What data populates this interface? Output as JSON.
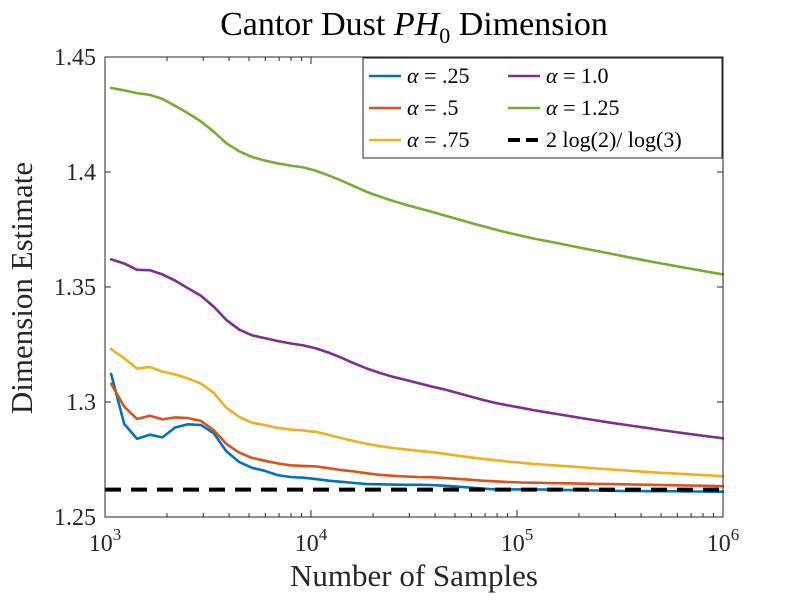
{
  "chart_data": {
    "type": "line",
    "title": "Cantor Dust PH0 Dimension",
    "title_parts": {
      "lead": "Cantor Dust ",
      "var": "PH",
      "sub": "0",
      "tail": " Dimension"
    },
    "xlabel": "Number of Samples",
    "ylabel": "Dimension Estimate",
    "xscale": "log",
    "xlim": [
      1000,
      1000000
    ],
    "ylim": [
      1.25,
      1.45
    ],
    "x_ticks": [
      {
        "value": 1000,
        "base": "10",
        "exp": "3"
      },
      {
        "value": 10000,
        "base": "10",
        "exp": "4"
      },
      {
        "value": 100000,
        "base": "10",
        "exp": "5"
      },
      {
        "value": 1000000,
        "base": "10",
        "exp": "6"
      }
    ],
    "y_ticks": [
      {
        "value": 1.25,
        "label": "1.25"
      },
      {
        "value": 1.3,
        "label": "1.3"
      },
      {
        "value": 1.35,
        "label": "1.35"
      },
      {
        "value": 1.4,
        "label": "1.4"
      },
      {
        "value": 1.45,
        "label": "1.45"
      }
    ],
    "legend_position": "top-right",
    "x": [
      1070,
      1240,
      1430,
      1650,
      1900,
      2190,
      2530,
      2920,
      3370,
      3880,
      4480,
      5170,
      5960,
      6880,
      7940,
      9160,
      10570,
      12190,
      14070,
      16230,
      18730,
      21610,
      24930,
      28770,
      33190,
      38300,
      44190,
      50990,
      58830,
      67880,
      78330,
      90370,
      104290,
      120320,
      138840,
      160200,
      184850,
      213290,
      246100,
      283970,
      327660,
      378080,
      436250,
      503370,
      580820,
      670180,
      773300,
      892270,
      1000000
    ],
    "series": [
      {
        "name": "α = .25",
        "legend": {
          "sym": "α",
          "rest": " = .25"
        },
        "color": "#0072BD",
        "style": "solid",
        "values": [
          1.3122,
          1.2905,
          1.284,
          1.2858,
          1.2846,
          1.2889,
          1.2903,
          1.29,
          1.2865,
          1.2786,
          1.2739,
          1.2714,
          1.2701,
          1.2682,
          1.2674,
          1.2671,
          1.2665,
          1.2658,
          1.2653,
          1.2648,
          1.2643,
          1.2642,
          1.2641,
          1.264,
          1.264,
          1.2639,
          1.2636,
          1.2632,
          1.2628,
          1.2624,
          1.262,
          1.262,
          1.262,
          1.262,
          1.2619,
          1.2618,
          1.2617,
          1.2616,
          1.2615,
          1.2614,
          1.2613,
          1.2613,
          1.2612,
          1.2612,
          1.2612,
          1.2611,
          1.2611,
          1.261,
          1.261
        ]
      },
      {
        "name": "α = .5",
        "legend": {
          "sym": "α",
          "rest": " = .5"
        },
        "color": "#D95319",
        "style": "solid",
        "values": [
          1.308,
          1.298,
          1.2926,
          1.294,
          1.2925,
          1.2933,
          1.293,
          1.2918,
          1.2878,
          1.2818,
          1.278,
          1.2757,
          1.2745,
          1.2733,
          1.2725,
          1.2722,
          1.272,
          1.2712,
          1.2704,
          1.2698,
          1.269,
          1.2683,
          1.2679,
          1.2676,
          1.2674,
          1.2673,
          1.267,
          1.2666,
          1.2662,
          1.2658,
          1.2655,
          1.2652,
          1.265,
          1.2649,
          1.2648,
          1.2647,
          1.2646,
          1.2645,
          1.2644,
          1.2643,
          1.2642,
          1.2641,
          1.264,
          1.2639,
          1.2638,
          1.2637,
          1.2636,
          1.2635,
          1.2634
        ]
      },
      {
        "name": "α = .75",
        "legend": {
          "sym": "α",
          "rest": " = .75"
        },
        "color": "#EDB120",
        "style": "solid",
        "values": [
          1.323,
          1.319,
          1.3145,
          1.3152,
          1.3132,
          1.312,
          1.3102,
          1.308,
          1.304,
          1.2975,
          1.2935,
          1.291,
          1.29,
          1.2888,
          1.288,
          1.2876,
          1.287,
          1.2857,
          1.2843,
          1.283,
          1.2818,
          1.2808,
          1.28,
          1.2794,
          1.2788,
          1.2782,
          1.2775,
          1.2767,
          1.276,
          1.2753,
          1.2747,
          1.2741,
          1.2736,
          1.2731,
          1.2727,
          1.2723,
          1.2719,
          1.2715,
          1.2711,
          1.2707,
          1.2703,
          1.2699,
          1.2695,
          1.2692,
          1.2689,
          1.2686,
          1.2683,
          1.268,
          1.2677
        ]
      },
      {
        "name": "α = 1.0",
        "legend": {
          "sym": "α",
          "rest": " = 1.0"
        },
        "color": "#7E2F8E",
        "style": "solid",
        "values": [
          1.362,
          1.3602,
          1.3575,
          1.3573,
          1.3555,
          1.3528,
          1.3495,
          1.3462,
          1.3415,
          1.3357,
          1.3315,
          1.329,
          1.3278,
          1.3265,
          1.3255,
          1.3246,
          1.3233,
          1.3215,
          1.3192,
          1.3168,
          1.3145,
          1.3126,
          1.311,
          1.3096,
          1.3082,
          1.3068,
          1.3055,
          1.304,
          1.3025,
          1.301,
          1.2996,
          1.2985,
          1.2975,
          1.2965,
          1.2955,
          1.2946,
          1.2937,
          1.2928,
          1.2919,
          1.291,
          1.2902,
          1.2894,
          1.2886,
          1.2878,
          1.287,
          1.2862,
          1.2855,
          1.2848,
          1.2842
        ]
      },
      {
        "name": "α = 1.25",
        "legend": {
          "sym": "α",
          "rest": " = 1.25"
        },
        "color": "#77AC30",
        "style": "solid",
        "values": [
          1.4365,
          1.4355,
          1.4343,
          1.4335,
          1.4318,
          1.4288,
          1.4255,
          1.422,
          1.4175,
          1.4125,
          1.409,
          1.4065,
          1.405,
          1.4038,
          1.4028,
          1.402,
          1.4005,
          1.3985,
          1.3962,
          1.3938,
          1.3913,
          1.3893,
          1.3875,
          1.3858,
          1.3843,
          1.3828,
          1.3812,
          1.3796,
          1.378,
          1.3765,
          1.375,
          1.3736,
          1.3723,
          1.3711,
          1.37,
          1.3689,
          1.3678,
          1.3667,
          1.3656,
          1.3645,
          1.3634,
          1.3623,
          1.3612,
          1.3602,
          1.3592,
          1.3582,
          1.3572,
          1.3562,
          1.3555
        ]
      },
      {
        "name": "2 log(2)/ log(3)",
        "legend": {
          "pre": "2 log(2)/ log(3)"
        },
        "color": "#000000",
        "style": "dashed",
        "constant": 1.2619
      }
    ]
  }
}
